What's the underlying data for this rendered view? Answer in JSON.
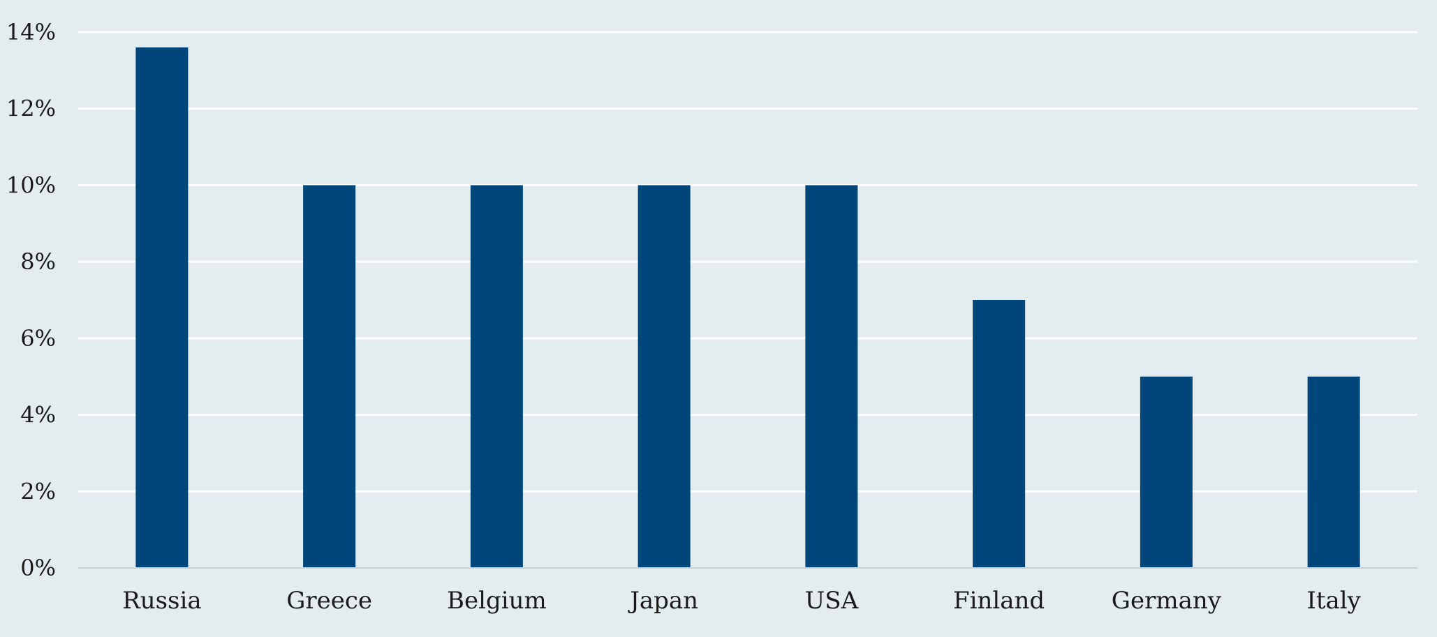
{
  "chart_data": {
    "type": "bar",
    "title": "",
    "xlabel": "",
    "ylabel": "",
    "categories": [
      "Russia",
      "Greece",
      "Belgium",
      "Japan",
      "USA",
      "Finland",
      "Germany",
      "Italy"
    ],
    "values": [
      13.6,
      10,
      10,
      10,
      10,
      7,
      5,
      5
    ],
    "ylim": [
      0,
      14
    ],
    "yticks": [
      0,
      2,
      4,
      6,
      8,
      10,
      12,
      14
    ],
    "ytick_labels": [
      "0%",
      "2%",
      "4%",
      "6%",
      "8%",
      "10%",
      "12%",
      "14%"
    ],
    "grid": true,
    "legend": "none",
    "colors": {
      "bar": "#00467a",
      "background": "#e3ecef",
      "grid": "#ffffff",
      "axis": "#c8d0d4"
    }
  }
}
